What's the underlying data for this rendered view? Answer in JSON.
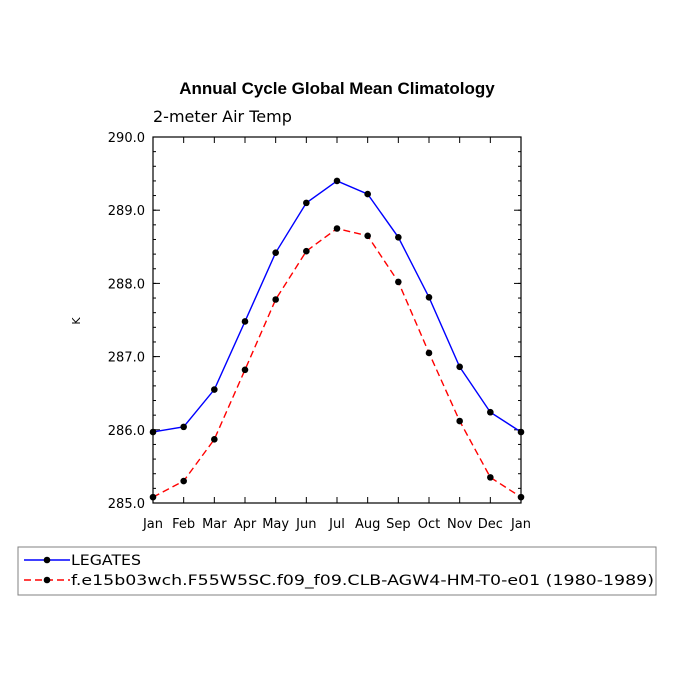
{
  "chart_data": {
    "type": "line",
    "title": "Annual Cycle Global Mean Climatology",
    "subtitle": "2-meter Air Temp",
    "xlabel": "",
    "ylabel": "K",
    "categories": [
      "Jan",
      "Feb",
      "Mar",
      "Apr",
      "May",
      "Jun",
      "Jul",
      "Aug",
      "Sep",
      "Oct",
      "Nov",
      "Dec",
      "Jan"
    ],
    "ylim": [
      285.0,
      290.0
    ],
    "yticks": [
      285.0,
      286.0,
      287.0,
      288.0,
      289.0,
      290.0
    ],
    "ytick_labels": [
      "285.0",
      "286.0",
      "287.0",
      "288.0",
      "289.0",
      "290.0"
    ],
    "series": [
      {
        "name": "LEGATES",
        "color": "#0000ff",
        "dash": "solid",
        "values": [
          285.97,
          286.04,
          286.55,
          287.48,
          288.42,
          289.1,
          289.4,
          289.22,
          288.63,
          287.81,
          286.86,
          286.24,
          285.97
        ]
      },
      {
        "name": "f.e15b03wch.F55W5SC.f09_f09.CLB-AGW4-HM-T0-e01 (1980-1989)",
        "color": "#ff0000",
        "dash": "dashed",
        "values": [
          285.08,
          285.3,
          285.87,
          286.82,
          287.78,
          288.44,
          288.75,
          288.65,
          288.02,
          287.05,
          286.12,
          285.35,
          285.08
        ]
      }
    ],
    "legend_position": "bottom"
  }
}
